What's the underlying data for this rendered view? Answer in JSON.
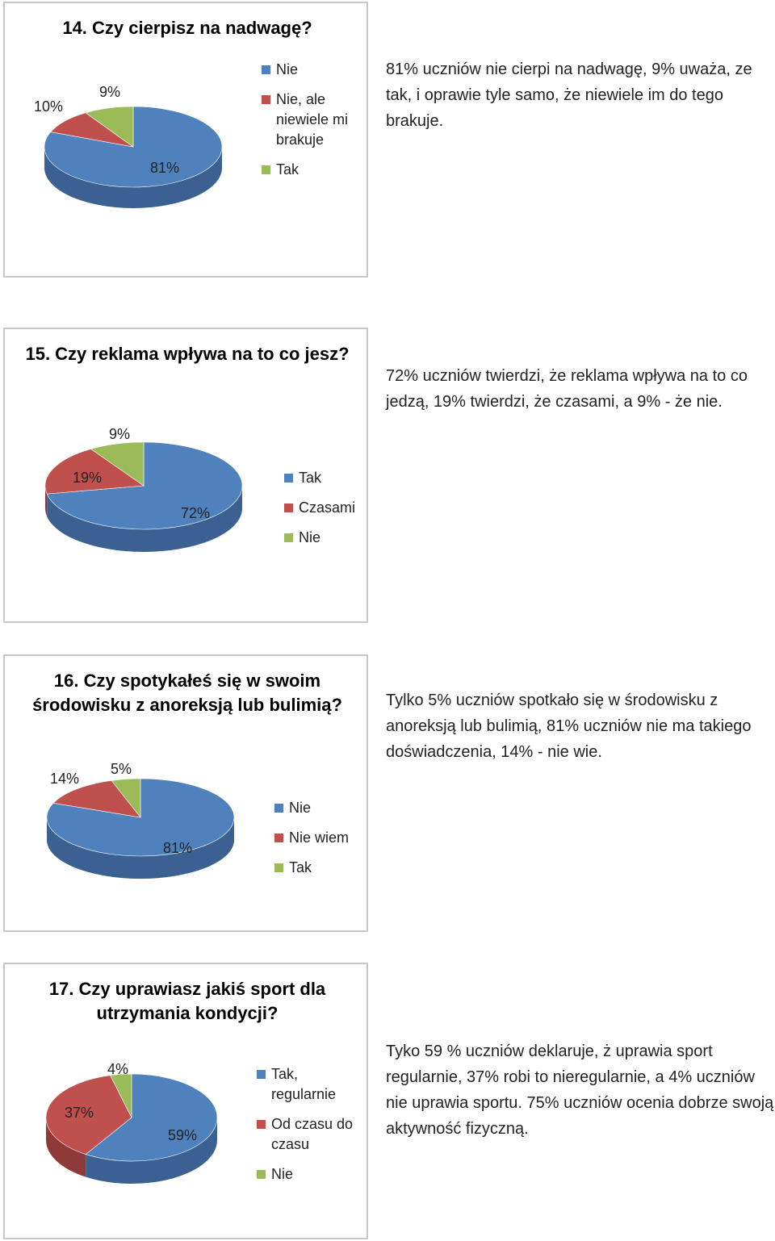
{
  "colors": {
    "blue": "#4f81bd",
    "red": "#c0504d",
    "green": "#9bbb59"
  },
  "chart_data": [
    {
      "type": "pie",
      "title": "14. Czy cierpisz na nadwagę?",
      "categories": [
        "Nie",
        "Nie, ale niewiele mi brakuje",
        "Tak"
      ],
      "values": [
        81,
        10,
        9
      ],
      "labels": [
        "81%",
        "10%",
        "9%"
      ],
      "legend_position": "right",
      "description": "81% uczniów nie cierpi na nadwagę, 9% uważa, ze tak, i oprawie tyle samo, że niewiele im do tego brakuje."
    },
    {
      "type": "pie",
      "title": "15. Czy reklama wpływa na to co jesz?",
      "categories": [
        "Tak",
        "Czasami",
        "Nie"
      ],
      "values": [
        72,
        19,
        9
      ],
      "labels": [
        "72%",
        "19%",
        "9%"
      ],
      "legend_position": "right",
      "description": "72% uczniów twierdzi, że reklama wpływa na to co jedzą, 19% twierdzi, że czasami, a 9%  - że nie."
    },
    {
      "type": "pie",
      "title": "16. Czy spotykałeś się w swoim środowisku z anoreksją lub bulimią?",
      "categories": [
        "Nie",
        "Nie wiem",
        "Tak"
      ],
      "values": [
        81,
        14,
        5
      ],
      "labels": [
        "81%",
        "14%",
        "5%"
      ],
      "legend_position": "right",
      "description": "Tylko 5% uczniów spotkało się w środowisku  z anoreksją lub bulimią, 81% uczniów nie ma takiego doświadczenia, 14% - nie wie."
    },
    {
      "type": "pie",
      "title": "17. Czy uprawiasz jakiś sport dla utrzymania kondycji?",
      "categories": [
        "Tak, regularnie",
        "Od czasu do czasu",
        "Nie"
      ],
      "values": [
        59,
        37,
        4
      ],
      "labels": [
        "59%",
        "37%",
        "4%"
      ],
      "legend_position": "right",
      "description": "Tyko 59 % uczniów deklaruje, ż uprawia sport regularnie, 37% robi to nieregularnie, a 4% uczniów nie uprawia sportu. 75% uczniów ocenia dobrze swoją aktywność fizyczną."
    }
  ]
}
